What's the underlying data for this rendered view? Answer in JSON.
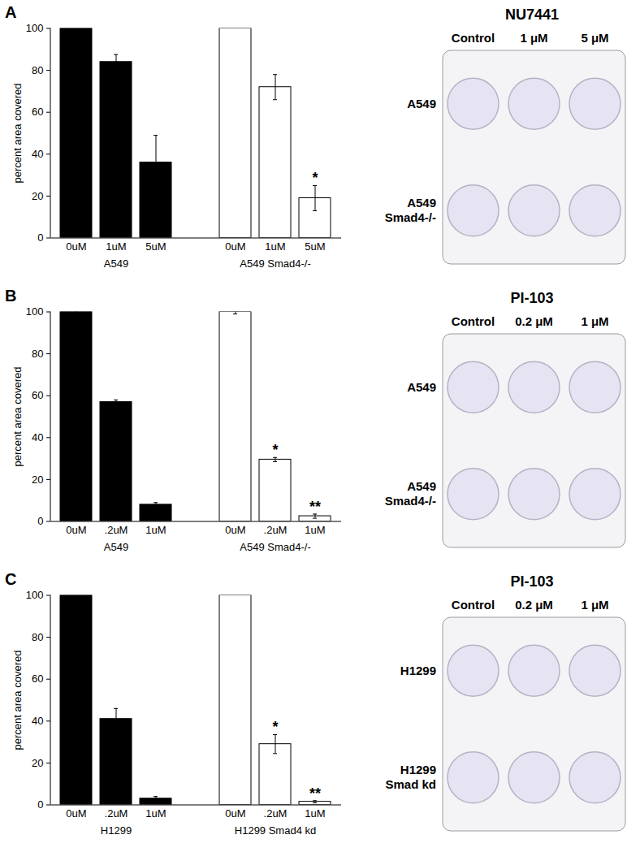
{
  "chart_data": [
    {
      "type": "bar",
      "title": "A",
      "y_label": "percent area covered",
      "ylim": [
        0,
        100
      ],
      "yticks": [
        0,
        20,
        40,
        60,
        80,
        100
      ],
      "series": [
        {
          "name": "A549",
          "color": "#000000",
          "categories": [
            "0uM",
            "1uM",
            "5uM"
          ],
          "values": [
            100,
            84,
            36
          ],
          "errors": [
            0,
            3.5,
            13
          ],
          "annotations": [
            null,
            null,
            null
          ]
        },
        {
          "name": "A549 Smad4-/-",
          "color": "#ffffff",
          "categories": [
            "0uM",
            "1uM",
            "5uM"
          ],
          "values": [
            100,
            72,
            19
          ],
          "errors": [
            0,
            6,
            6
          ],
          "annotations": [
            null,
            null,
            "*"
          ]
        }
      ],
      "plate": {
        "title": "NU7441",
        "columns": [
          "Control",
          "1 μM",
          "5 μM"
        ],
        "rows": [
          "A549",
          "A549 Smad4-/-"
        ]
      }
    },
    {
      "type": "bar",
      "title": "B",
      "y_label": "percent area covered",
      "ylim": [
        0,
        100
      ],
      "yticks": [
        0,
        20,
        40,
        60,
        80,
        100
      ],
      "series": [
        {
          "name": "A549",
          "color": "#000000",
          "categories": [
            "0uM",
            ".2uM",
            "1uM"
          ],
          "values": [
            100,
            57,
            8
          ],
          "errors": [
            1,
            1,
            1
          ],
          "annotations": [
            null,
            null,
            null
          ]
        },
        {
          "name": "A549 Smad4-/-",
          "color": "#ffffff",
          "categories": [
            "0uM",
            ".2uM",
            "1uM"
          ],
          "values": [
            100,
            29.5,
            2.5
          ],
          "errors": [
            1,
            1,
            1
          ],
          "annotations": [
            null,
            "*",
            "**"
          ]
        }
      ],
      "plate": {
        "title": "PI-103",
        "columns": [
          "Control",
          "0.2 μM",
          "1 μM"
        ],
        "rows": [
          "A549",
          "A549 Smad4-/-"
        ]
      }
    },
    {
      "type": "bar",
      "title": "C",
      "y_label": "percent area covered",
      "ylim": [
        0,
        100
      ],
      "yticks": [
        0,
        20,
        40,
        60,
        80,
        100
      ],
      "series": [
        {
          "name": "H1299",
          "color": "#000000",
          "categories": [
            "0uM",
            ".2uM",
            "1uM"
          ],
          "values": [
            100,
            41,
            3
          ],
          "errors": [
            0,
            5,
            1
          ],
          "annotations": [
            null,
            null,
            null
          ]
        },
        {
          "name": "H1299 Smad4 kd",
          "color": "#ffffff",
          "categories": [
            "0uM",
            ".2uM",
            "1uM"
          ],
          "values": [
            100,
            29,
            1.5
          ],
          "errors": [
            0,
            4.5,
            0.5
          ],
          "annotations": [
            null,
            "*",
            "**"
          ]
        }
      ],
      "plate": {
        "title": "PI-103",
        "columns": [
          "Control",
          "0.2 μM",
          "1 μM"
        ],
        "rows": [
          "H1299",
          "H1299 Smad kd"
        ]
      }
    }
  ]
}
